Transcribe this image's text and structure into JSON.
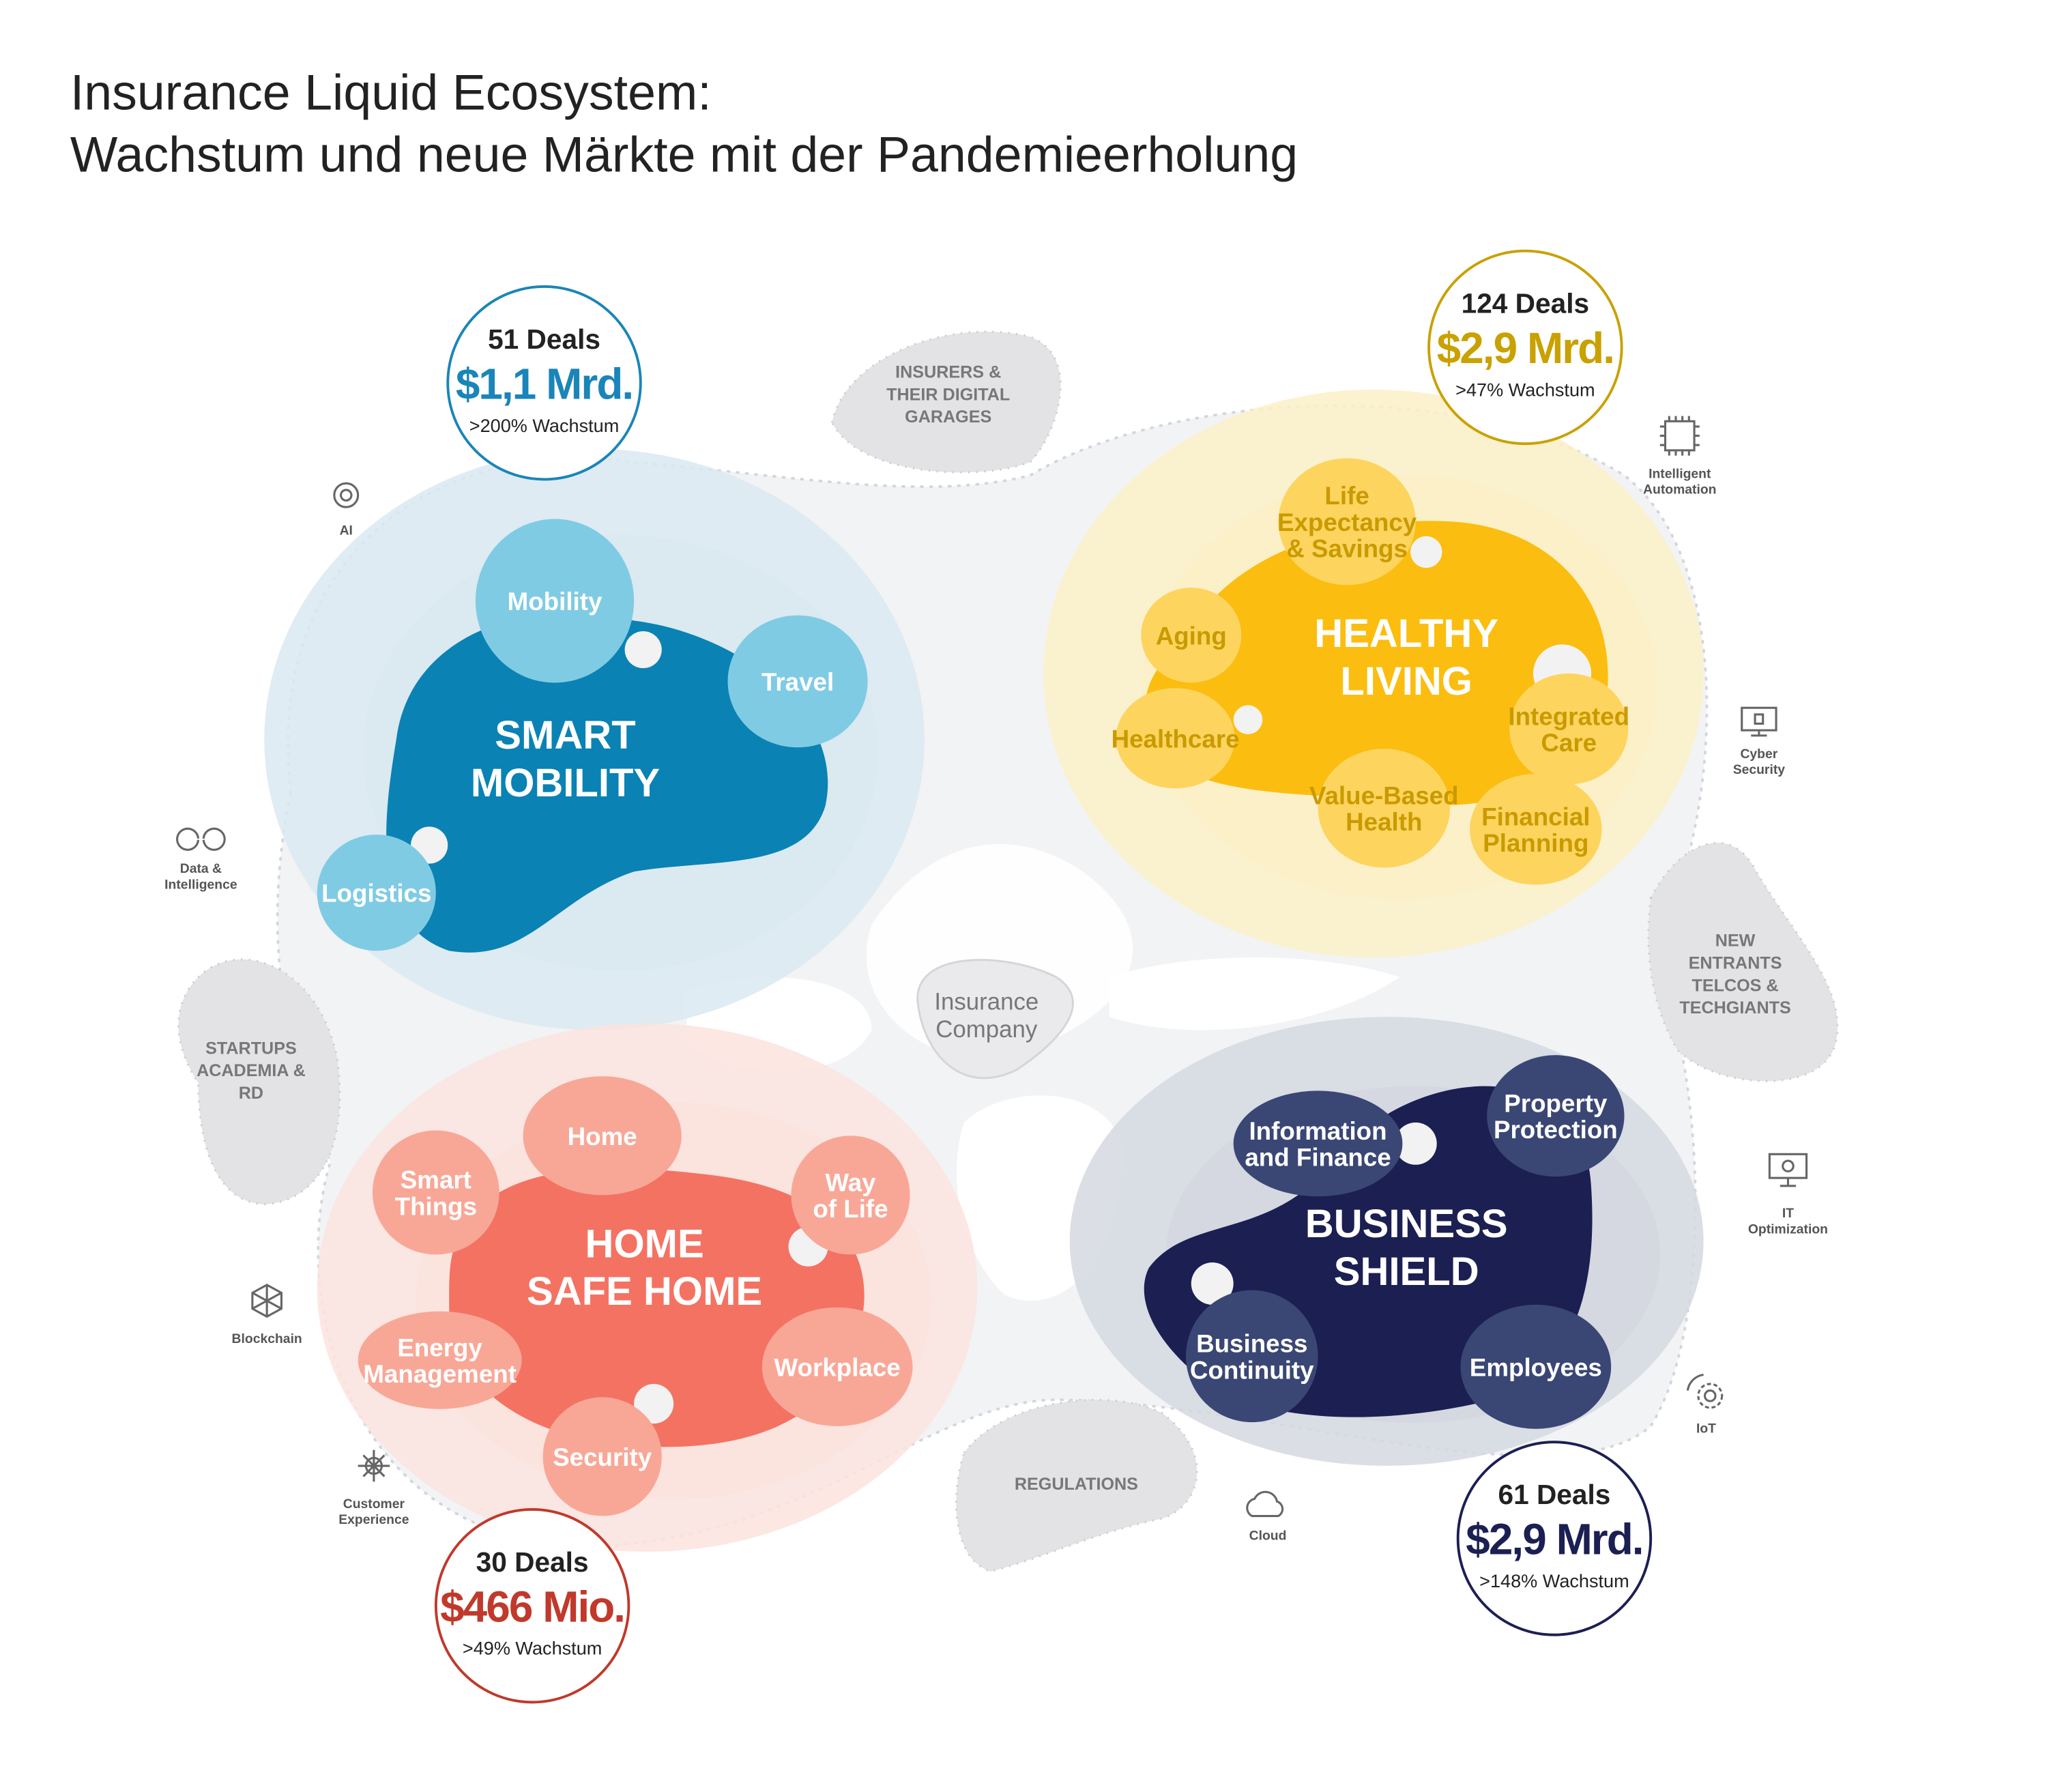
{
  "title": {
    "line1": "Insurance Liquid Ecosystem:",
    "line2": "Wachstum und neue Märkte mit der Pandemieerholung"
  },
  "center": {
    "lines": [
      "Insurance",
      "Company"
    ]
  },
  "segments": [
    {
      "id": "smart-mobility",
      "label": [
        "SMART",
        "MOBILITY"
      ],
      "colors": {
        "main": "#0a82b4",
        "bubble": "#80cbe4",
        "pale": "#dbe9f1",
        "bubble_text": "#ffffff",
        "stat": "#1a85b8"
      },
      "stats": {
        "deals": "51 Deals",
        "amount": "$1,1 Mrd.",
        "growth": ">200% Wachstum"
      },
      "bubbles": [
        {
          "lines": [
            "Mobility"
          ]
        },
        {
          "lines": [
            "Travel"
          ]
        },
        {
          "lines": [
            "Logistics"
          ]
        }
      ]
    },
    {
      "id": "healthy-living",
      "label": [
        "HEALTHY",
        "LIVING"
      ],
      "colors": {
        "main": "#fbbd0f",
        "bubble": "#fdd45e",
        "pale": "#fbf0c8",
        "bubble_text": "#c99a00",
        "stat": "#c9a100"
      },
      "stats": {
        "deals": "124 Deals",
        "amount": "$2,9 Mrd.",
        "growth": ">47% Wachstum"
      },
      "bubbles": [
        {
          "lines": [
            "Life",
            "Expectancy",
            "& Savings"
          ]
        },
        {
          "lines": [
            "Aging"
          ]
        },
        {
          "lines": [
            "Healthcare"
          ]
        },
        {
          "lines": [
            "Integrated",
            "Care"
          ]
        },
        {
          "lines": [
            "Value-Based",
            "Health"
          ]
        },
        {
          "lines": [
            "Financial",
            "Planning"
          ]
        }
      ]
    },
    {
      "id": "home-safe-home",
      "label": [
        "HOME",
        "SAFE HOME"
      ],
      "colors": {
        "main": "#f47262",
        "bubble": "#f8a797",
        "pale": "#fbe3de",
        "bubble_text": "#ffffff",
        "stat": "#c0392b"
      },
      "stats": {
        "deals": "30 Deals",
        "amount": "$466 Mio.",
        "growth": ">49% Wachstum"
      },
      "bubbles": [
        {
          "lines": [
            "Home"
          ]
        },
        {
          "lines": [
            "Smart",
            "Things"
          ]
        },
        {
          "lines": [
            "Way",
            "of Life"
          ]
        },
        {
          "lines": [
            "Energy",
            "Management"
          ]
        },
        {
          "lines": [
            "Workplace"
          ]
        },
        {
          "lines": [
            "Security"
          ]
        }
      ]
    },
    {
      "id": "business-shield",
      "label": [
        "BUSINESS",
        "SHIELD"
      ],
      "colors": {
        "main": "#1c1f52",
        "bubble": "#3a4775",
        "pale": "#d5d8e0",
        "bubble_text": "#ffffff",
        "stat": "#1c1f52"
      },
      "stats": {
        "deals": "61 Deals",
        "amount": "$2,9 Mrd.",
        "growth": ">148% Wachstum"
      },
      "bubbles": [
        {
          "lines": [
            "Information",
            "and Finance"
          ]
        },
        {
          "lines": [
            "Property",
            "Protection"
          ]
        },
        {
          "lines": [
            "Business",
            "Continuity"
          ]
        },
        {
          "lines": [
            "Employees"
          ]
        }
      ]
    }
  ],
  "stakeholders": [
    {
      "lines": [
        "INSURERS &",
        "THEIR DIGITAL",
        "GARAGES"
      ]
    },
    {
      "lines": [
        "STARTUPS",
        "ACADEMIA &",
        "RD"
      ]
    },
    {
      "lines": [
        "NEW",
        "ENTRANTS",
        "TELCOS &",
        "TECHGIANTS"
      ]
    },
    {
      "lines": [
        "REGULATIONS"
      ]
    }
  ],
  "technologies": [
    {
      "icon": "ai-head-icon",
      "lines": [
        "AI"
      ]
    },
    {
      "icon": "data-loop-icon",
      "lines": [
        "Data &",
        "Intelligence"
      ]
    },
    {
      "icon": "blockchain-icon",
      "lines": [
        "Blockchain"
      ]
    },
    {
      "icon": "customer-experience-icon",
      "lines": [
        "Customer",
        "Experience"
      ]
    },
    {
      "icon": "chip-icon",
      "lines": [
        "Intelligent",
        "Automation"
      ]
    },
    {
      "icon": "monitor-lock-icon",
      "lines": [
        "Cyber",
        "Security"
      ]
    },
    {
      "icon": "monitor-gear-icon",
      "lines": [
        "IT",
        "Optimization"
      ]
    },
    {
      "icon": "iot-gear-icon",
      "lines": [
        "IoT"
      ]
    },
    {
      "icon": "cloud-icon",
      "lines": [
        "Cloud"
      ]
    }
  ]
}
